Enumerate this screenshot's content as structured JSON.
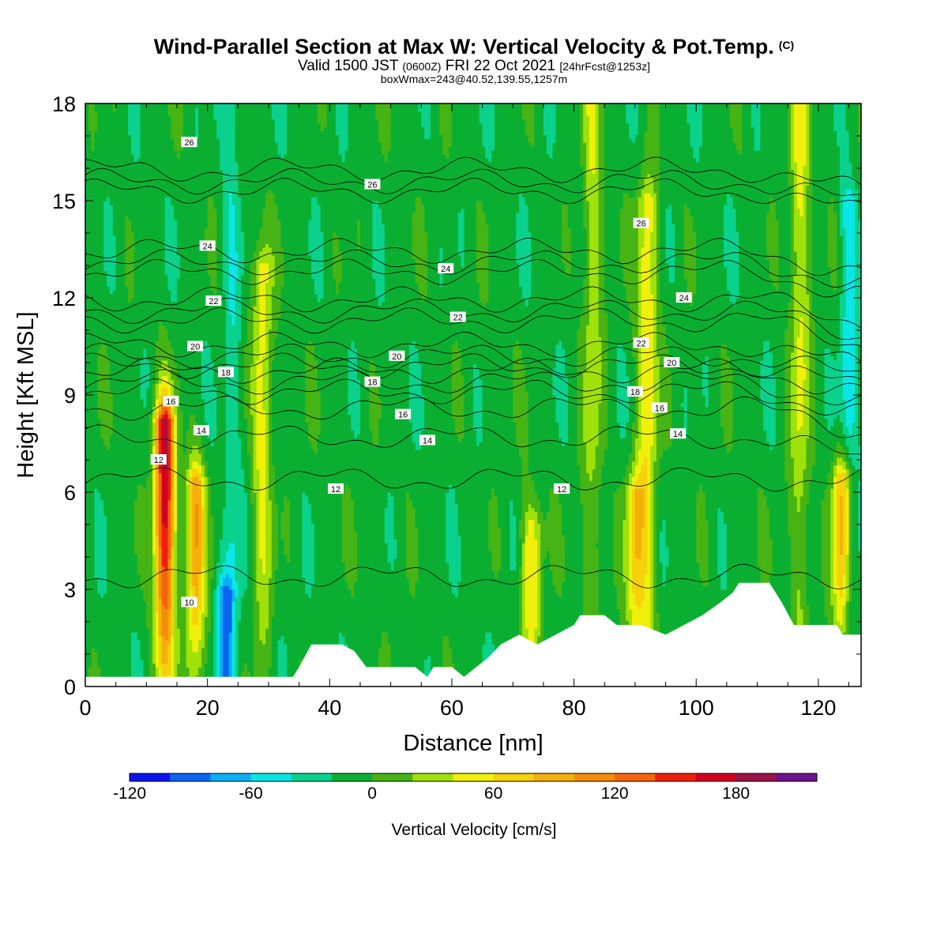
{
  "header": {
    "title": "Wind-Parallel Section at Max W: Vertical Velocity & Pot.Temp.",
    "copyright": "(C)",
    "valid_main": "Valid 1500 JST",
    "valid_z": "(0600Z)",
    "valid_date": "FRI 22 Oct 2021",
    "valid_fcst": "[24hrFcst@1253z]",
    "box_w_max": "boxWmax=243@40.52,139.55,1257m"
  },
  "chart_data": {
    "type": "heatmap",
    "xlabel": "Distance [nm]",
    "ylabel": "Height [Kft MSL]",
    "xlim": [
      0,
      127
    ],
    "ylim": [
      0,
      18
    ],
    "x_ticks": [
      0,
      20,
      40,
      60,
      80,
      100,
      120
    ],
    "y_ticks": [
      0,
      3,
      6,
      9,
      12,
      15,
      18
    ],
    "colorbar": {
      "label": "Vertical Velocity [cm/s]",
      "bounds": [
        -120,
        -100,
        -80,
        -60,
        -40,
        -20,
        0,
        20,
        40,
        60,
        80,
        100,
        120,
        140,
        160,
        180,
        200,
        220
      ],
      "tick_labels": [
        -120,
        -60,
        0,
        60,
        120,
        180
      ],
      "colors": [
        "#0a14f0",
        "#0a64f0",
        "#0aaff5",
        "#0ae6e6",
        "#0ad28c",
        "#0aaf32",
        "#46b414",
        "#a0e10a",
        "#f0f00a",
        "#f5d20a",
        "#f5af0a",
        "#f58c0a",
        "#f5640a",
        "#f01e0a",
        "#d2001e",
        "#9b1446",
        "#6e148c"
      ]
    },
    "background_value": -10,
    "updraft_columns": [
      {
        "x": 13,
        "z_top": 8.2,
        "w_max": 190
      },
      {
        "x": 18,
        "z_top": 6.3,
        "w_max": 105
      },
      {
        "x": 29,
        "z_top": 13,
        "w_max": 60
      },
      {
        "x": 73,
        "z_top": 5,
        "w_max": 70
      },
      {
        "x": 83,
        "z_top": 18,
        "w_max": 45
      },
      {
        "x": 90,
        "z_top": 6,
        "w_max": 75
      },
      {
        "x": 92,
        "z_top": 15,
        "w_max": 70
      },
      {
        "x": 117,
        "z_top": 18,
        "w_max": 55
      },
      {
        "x": 124,
        "z_top": 6.5,
        "w_max": 110
      }
    ],
    "downdraft_columns": [
      {
        "x": 23,
        "z_top": 3,
        "w_min": -75
      },
      {
        "x": 24,
        "z_top": 18,
        "w_min": -35
      },
      {
        "x": 125,
        "z_top": 15,
        "w_min": -55
      }
    ],
    "terrain_height": [
      [
        0,
        0.3
      ],
      [
        34,
        0.3
      ],
      [
        35,
        0.6
      ],
      [
        37,
        1.3
      ],
      [
        42,
        1.3
      ],
      [
        44,
        1.1
      ],
      [
        46,
        0.6
      ],
      [
        54,
        0.6
      ],
      [
        56,
        0.3
      ],
      [
        57,
        0.6
      ],
      [
        60,
        0.6
      ],
      [
        62,
        0.3
      ],
      [
        64,
        0.6
      ],
      [
        66,
        0.9
      ],
      [
        68,
        1.3
      ],
      [
        71,
        1.6
      ],
      [
        74,
        1.3
      ],
      [
        77,
        1.6
      ],
      [
        80,
        1.9
      ],
      [
        81,
        2.2
      ],
      [
        85,
        2.2
      ],
      [
        87,
        1.9
      ],
      [
        91,
        1.9
      ],
      [
        95,
        1.6
      ],
      [
        98,
        1.9
      ],
      [
        101,
        2.2
      ],
      [
        104,
        2.6
      ],
      [
        106,
        2.9
      ],
      [
        107,
        3.2
      ],
      [
        112,
        3.2
      ],
      [
        114,
        2.6
      ],
      [
        116,
        1.9
      ],
      [
        123,
        1.9
      ],
      [
        124,
        1.6
      ],
      [
        127,
        1.6
      ]
    ],
    "contour_field": "Potential temperature (deg C)",
    "contour_levels": [
      10,
      12,
      14,
      16,
      18,
      20,
      22,
      24,
      26
    ],
    "contour_labels": [
      {
        "text": "26",
        "x": 17,
        "z": 16.8
      },
      {
        "text": "26",
        "x": 47,
        "z": 15.5
      },
      {
        "text": "26",
        "x": 91,
        "z": 14.3
      },
      {
        "text": "24",
        "x": 20,
        "z": 13.6
      },
      {
        "text": "24",
        "x": 59,
        "z": 12.9
      },
      {
        "text": "24",
        "x": 98,
        "z": 12.0
      },
      {
        "text": "22",
        "x": 21,
        "z": 11.9
      },
      {
        "text": "22",
        "x": 61,
        "z": 11.4
      },
      {
        "text": "22",
        "x": 91,
        "z": 10.6
      },
      {
        "text": "20",
        "x": 18,
        "z": 10.5
      },
      {
        "text": "20",
        "x": 51,
        "z": 10.2
      },
      {
        "text": "20",
        "x": 96,
        "z": 10.0
      },
      {
        "text": "18",
        "x": 23,
        "z": 9.7
      },
      {
        "text": "18",
        "x": 47,
        "z": 9.4
      },
      {
        "text": "18",
        "x": 90,
        "z": 9.1
      },
      {
        "text": "16",
        "x": 14,
        "z": 8.8
      },
      {
        "text": "16",
        "x": 52,
        "z": 8.4
      },
      {
        "text": "16",
        "x": 94,
        "z": 8.6
      },
      {
        "text": "14",
        "x": 19,
        "z": 7.9
      },
      {
        "text": "14",
        "x": 56,
        "z": 7.6
      },
      {
        "text": "14",
        "x": 97,
        "z": 7.8
      },
      {
        "text": "12",
        "x": 12,
        "z": 7.0
      },
      {
        "text": "12",
        "x": 41,
        "z": 6.1
      },
      {
        "text": "12",
        "x": 78,
        "z": 6.1
      },
      {
        "text": "10",
        "x": 17,
        "z": 2.6
      }
    ]
  }
}
